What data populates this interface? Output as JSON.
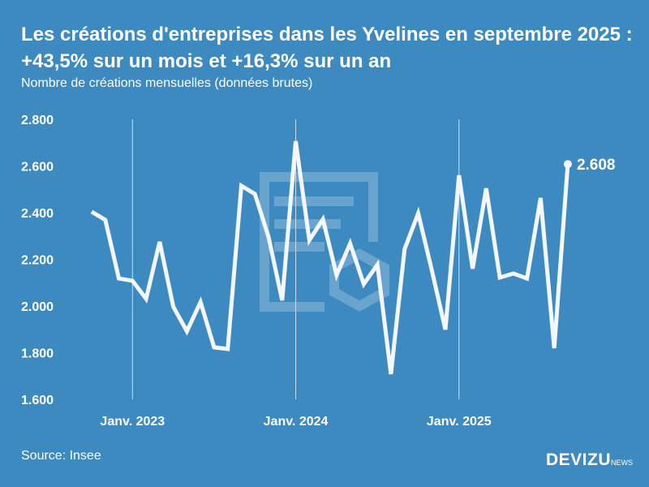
{
  "title": "Les créations d'entreprises dans les Yvelines en septembre 2025 : +43,5% sur un mois et +16,3% sur un an",
  "subtitle": "Nombre de créations mensuelles (données brutes)",
  "source": "Source: Insee",
  "logo": {
    "main": "DEVIZU",
    "suffix": "NEWS"
  },
  "colors": {
    "background": "#3d8ac0",
    "line": "#f5f7ff"
  },
  "chart_data": {
    "type": "line",
    "title": "Les créations d'entreprises dans les Yvelines en septembre 2025 : +43,5% sur un mois et +16,3% sur un an",
    "ylabel": "",
    "xlabel": "",
    "ylim": [
      1600,
      2800
    ],
    "yticks": [
      1600,
      1800,
      2000,
      2200,
      2400,
      2600,
      2800
    ],
    "ytick_labels": [
      "1.600",
      "1.800",
      "2.000",
      "2.200",
      "2.400",
      "2.600",
      "2.800"
    ],
    "xtick_labels": [
      {
        "label": "Janv. 2023",
        "x": "2023-01"
      },
      {
        "label": "Janv. 2024",
        "x": "2024-01"
      },
      {
        "label": "Janv. 2025",
        "x": "2025-01"
      }
    ],
    "grid": "vertical at January",
    "x": [
      "2022-10",
      "2022-11",
      "2022-12",
      "2023-01",
      "2023-02",
      "2023-03",
      "2023-04",
      "2023-05",
      "2023-06",
      "2023-07",
      "2023-08",
      "2023-09",
      "2023-10",
      "2023-11",
      "2023-12",
      "2024-01",
      "2024-02",
      "2024-03",
      "2024-04",
      "2024-05",
      "2024-06",
      "2024-07",
      "2024-08",
      "2024-09",
      "2024-10",
      "2024-11",
      "2024-12",
      "2025-01",
      "2025-02",
      "2025-03",
      "2025-04",
      "2025-05",
      "2025-06",
      "2025-07",
      "2025-08",
      "2025-09"
    ],
    "values": [
      2404,
      2369,
      2118,
      2108,
      2031,
      2275,
      1997,
      1892,
      2017,
      1823,
      1816,
      2515,
      2480,
      2296,
      2024,
      2706,
      2282,
      2372,
      2132,
      2268,
      2094,
      2177,
      1708,
      2243,
      2397,
      2153,
      1899,
      2560,
      2160,
      2504,
      2122,
      2139,
      2118,
      2463,
      1819,
      2608
    ],
    "last_label": "2.608"
  }
}
